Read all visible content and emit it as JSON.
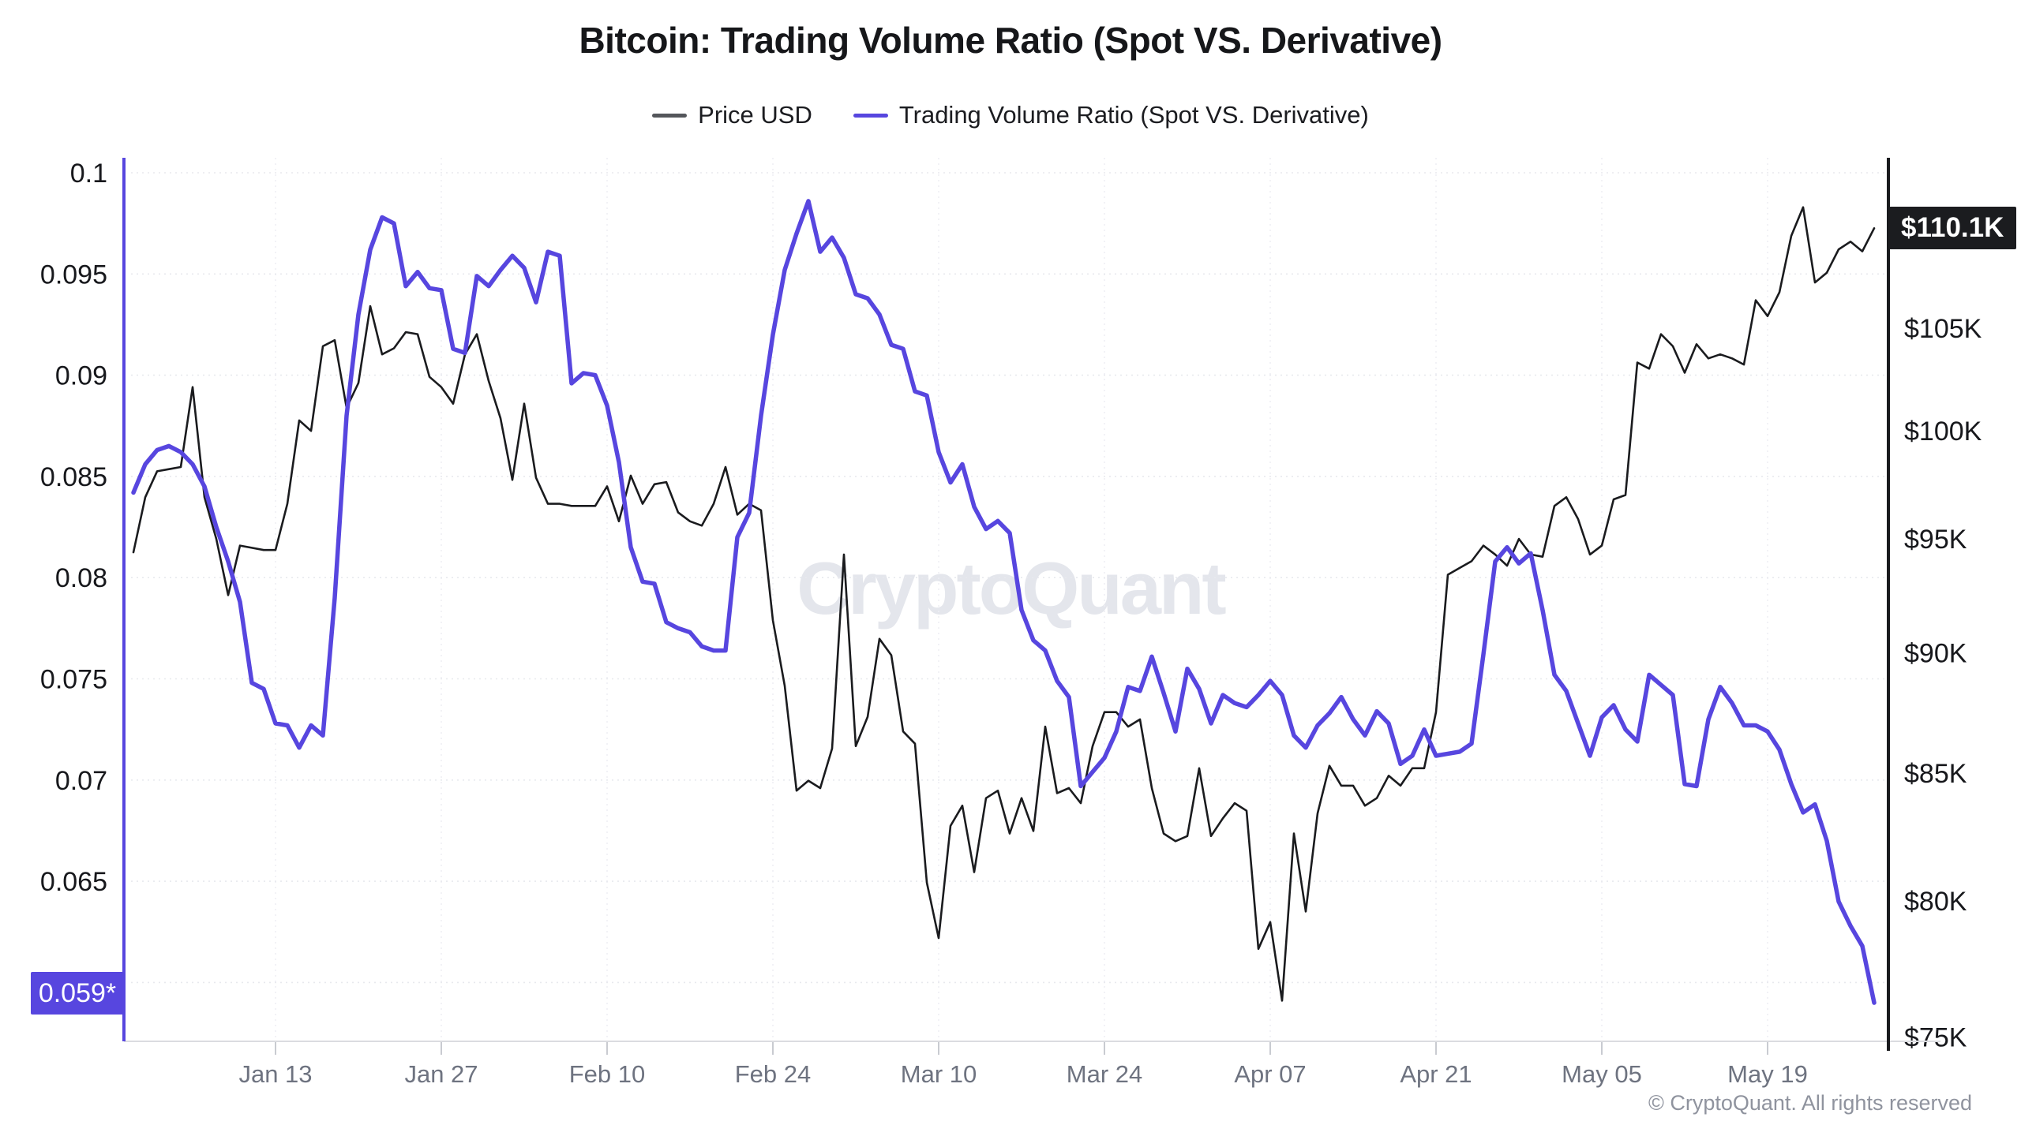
{
  "title": "Bitcoin: Trading Volume Ratio (Spot VS. Derivative)",
  "legend": {
    "items": [
      {
        "label": "Price USD",
        "color": "#54565b"
      },
      {
        "label": "Trading Volume Ratio (Spot VS. Derivative)",
        "color": "#5746df"
      }
    ]
  },
  "watermark": "CryptoQuant",
  "copyright": "© CryptoQuant. All rights reserved",
  "badges": {
    "price_last": "$110.1K",
    "ratio_last": "0.059*"
  },
  "colors": {
    "price_line": "#1a1b1e",
    "ratio_line": "#5746df",
    "left_axis": "#5746df",
    "right_axis": "#1a1b1e",
    "grid": "#e8e9ee",
    "grid_vertical": "#edeef3",
    "x_axis_line": "#dbdce0",
    "x_tick": "#c9cbd1",
    "x_label": "#6e7380",
    "y_label": "#17181c",
    "price_badge_bg": "#1b1c1f",
    "ratio_badge_bg": "#5746df",
    "watermark": "#e4e6ec"
  },
  "chart_data": {
    "type": "line",
    "title": "Bitcoin: Trading Volume Ratio (Spot VS. Derivative)",
    "x_range": "Daily data, Jan 1 - May 28 (148 points)",
    "x_tick_labels": [
      "Jan 13",
      "Jan 27",
      "Feb 10",
      "Feb 24",
      "Mar 10",
      "Mar 24",
      "Apr 07",
      "Apr 21",
      "May 05",
      "May 19"
    ],
    "x_first_tick_index": 12,
    "x_tick_step_days": 14,
    "y_left_axis": {
      "series": "Trading Volume Ratio (Spot VS. Derivative)",
      "scale": "linear",
      "ticks": [
        "0.1",
        "0.095",
        "0.09",
        "0.085",
        "0.08",
        "0.075",
        "0.07",
        "0.065"
      ],
      "range": [
        0.057,
        0.1
      ],
      "last_value_label": "0.059*"
    },
    "y_right_axis": {
      "series": "Price USD",
      "scale": "log",
      "ticks": [
        "$105K",
        "$100K",
        "$95K",
        "$90K",
        "$85K",
        "$80K",
        "$75K"
      ],
      "range_usd_thousands": [
        74,
        112
      ],
      "last_value_label": "$110.1K"
    },
    "grid": {
      "horizontal": "dotted at left-axis ticks (plus unlabeled 0.06 line)",
      "vertical": "faint at x ticks"
    },
    "legend_position": "top-center",
    "series": [
      {
        "name": "Price USD",
        "axis": "right",
        "color": "#1a1b1e",
        "unit": "USD thousands",
        "values": [
          94.4,
          96.9,
          98.1,
          98.2,
          98.3,
          102.1,
          96.9,
          95.0,
          92.5,
          94.7,
          94.6,
          94.5,
          94.5,
          96.6,
          100.5,
          100.0,
          104.1,
          104.4,
          101.1,
          102.3,
          106.1,
          103.7,
          104.0,
          104.8,
          104.7,
          102.6,
          102.1,
          101.3,
          103.7,
          104.7,
          102.4,
          100.6,
          97.7,
          101.3,
          97.8,
          96.6,
          96.6,
          96.5,
          96.5,
          96.5,
          97.4,
          95.8,
          97.9,
          96.6,
          97.5,
          97.6,
          96.2,
          95.8,
          95.6,
          96.6,
          98.3,
          96.1,
          96.6,
          96.3,
          91.4,
          88.6,
          84.3,
          84.7,
          84.4,
          86.0,
          94.3,
          86.1,
          87.3,
          90.6,
          89.9,
          86.7,
          86.2,
          80.7,
          78.6,
          82.9,
          83.7,
          81.1,
          84.0,
          84.3,
          82.6,
          84.0,
          82.7,
          86.9,
          84.2,
          84.4,
          83.8,
          86.1,
          87.5,
          87.5,
          86.9,
          87.2,
          84.4,
          82.6,
          82.3,
          82.5,
          85.2,
          82.5,
          83.2,
          83.8,
          83.5,
          78.2,
          79.2,
          76.3,
          82.6,
          79.6,
          83.4,
          85.3,
          84.5,
          84.5,
          83.7,
          84.0,
          84.9,
          84.5,
          85.2,
          85.2,
          87.5,
          93.4,
          93.7,
          94.0,
          94.7,
          94.3,
          93.8,
          95.0,
          94.3,
          94.2,
          96.5,
          96.9,
          95.9,
          94.3,
          94.7,
          96.8,
          97.0,
          103.3,
          103.0,
          104.7,
          104.1,
          102.8,
          104.2,
          103.5,
          103.7,
          103.5,
          103.2,
          106.4,
          105.6,
          106.8,
          109.7,
          111.2,
          107.3,
          107.8,
          109.0,
          109.4,
          108.9,
          110.1
        ]
      },
      {
        "name": "Trading Volume Ratio (Spot VS. Derivative)",
        "axis": "left",
        "color": "#5746df",
        "unit": "ratio",
        "values": [
          0.0842,
          0.0856,
          0.0863,
          0.0865,
          0.0862,
          0.0856,
          0.0845,
          0.0825,
          0.0808,
          0.0788,
          0.0748,
          0.0745,
          0.0728,
          0.0727,
          0.0716,
          0.0727,
          0.0722,
          0.079,
          0.088,
          0.093,
          0.0962,
          0.0978,
          0.0975,
          0.0944,
          0.0951,
          0.0943,
          0.0942,
          0.0913,
          0.0911,
          0.0949,
          0.0944,
          0.0952,
          0.0959,
          0.0953,
          0.0936,
          0.0961,
          0.0959,
          0.0896,
          0.0901,
          0.09,
          0.0885,
          0.0857,
          0.0815,
          0.0798,
          0.0797,
          0.0778,
          0.0775,
          0.0773,
          0.0766,
          0.0764,
          0.0764,
          0.082,
          0.0832,
          0.088,
          0.092,
          0.0952,
          0.097,
          0.0986,
          0.0961,
          0.0968,
          0.0958,
          0.094,
          0.0938,
          0.093,
          0.0915,
          0.0913,
          0.0892,
          0.089,
          0.0862,
          0.0847,
          0.0856,
          0.0835,
          0.0824,
          0.0828,
          0.0822,
          0.0784,
          0.0769,
          0.0764,
          0.0749,
          0.0741,
          0.0697,
          0.0704,
          0.0711,
          0.0724,
          0.0746,
          0.0744,
          0.0761,
          0.0743,
          0.0724,
          0.0755,
          0.0745,
          0.0728,
          0.0742,
          0.0738,
          0.0736,
          0.0742,
          0.0749,
          0.0742,
          0.0722,
          0.0716,
          0.0727,
          0.0733,
          0.0741,
          0.073,
          0.0722,
          0.0734,
          0.0728,
          0.0708,
          0.0712,
          0.0725,
          0.0712,
          0.0713,
          0.0714,
          0.0718,
          0.0762,
          0.0808,
          0.0815,
          0.0807,
          0.0812,
          0.0784,
          0.0752,
          0.0744,
          0.0728,
          0.0712,
          0.0731,
          0.0737,
          0.0725,
          0.0719,
          0.0752,
          0.0747,
          0.0742,
          0.0698,
          0.0697,
          0.073,
          0.0746,
          0.0738,
          0.0727,
          0.0727,
          0.0724,
          0.0715,
          0.0698,
          0.0684,
          0.0688,
          0.067,
          0.064,
          0.0628,
          0.0618,
          0.059
        ]
      }
    ]
  }
}
